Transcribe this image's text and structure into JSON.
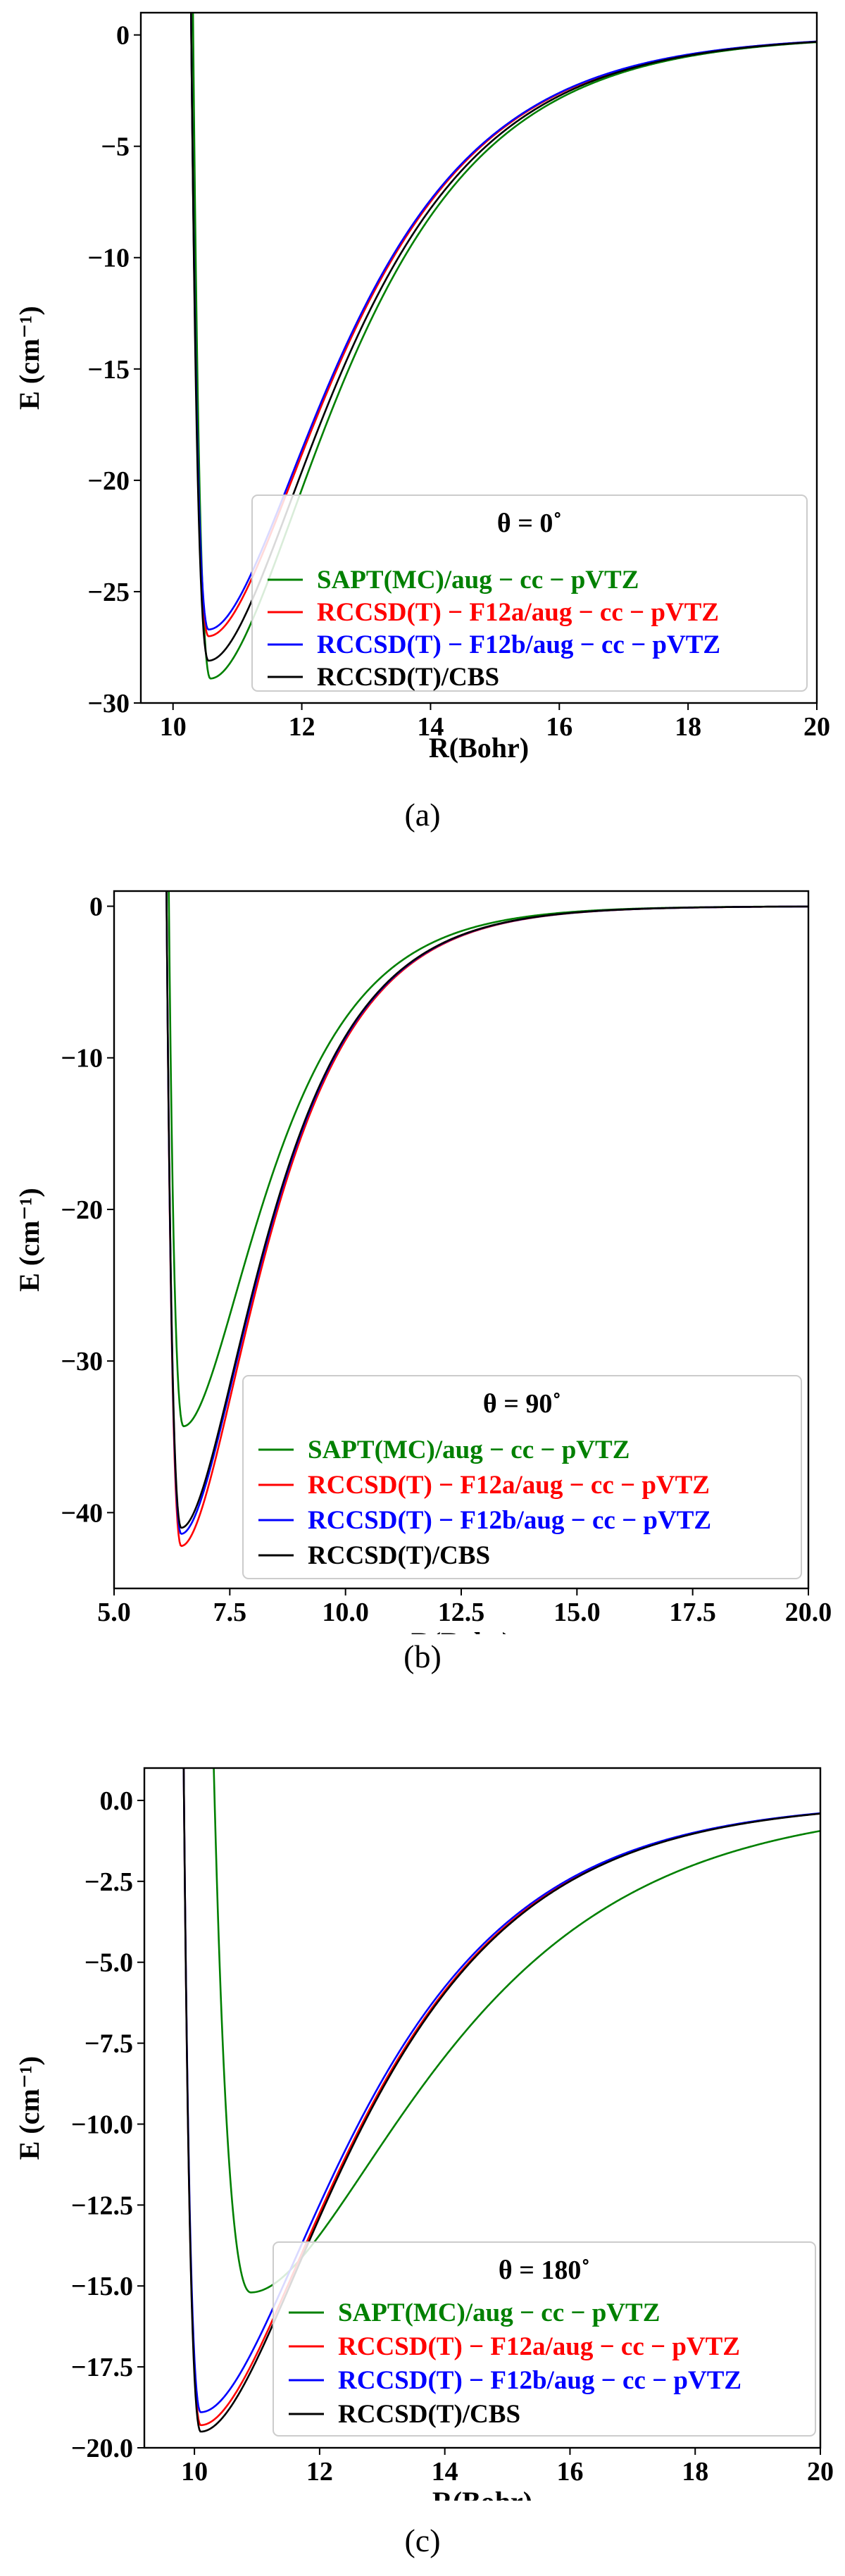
{
  "chart_data": [
    {
      "type": "line",
      "panel_label": "(a)",
      "title": "θ = 0˚",
      "xlabel": "R(Bohr)",
      "ylabel": "E (cm⁻¹)",
      "xlim": [
        9.5,
        20
      ],
      "ylim": [
        -30,
        1
      ],
      "xticks": [
        10,
        12,
        14,
        16,
        18,
        20
      ],
      "xtick_labels": [
        "10",
        "12",
        "14",
        "16",
        "18",
        "20"
      ],
      "yticks": [
        0,
        -5,
        -10,
        -15,
        -20,
        -25,
        -30
      ],
      "ytick_labels": [
        "0",
        "−5",
        "−10",
        "−15",
        "−20",
        "−25",
        "−30"
      ],
      "legend_position": "center-right",
      "series": [
        {
          "name": "SAPT(MC)/aug − cc − pVTZ",
          "color": "#008000",
          "r_min": 10.58,
          "well_depth": -28.9
        },
        {
          "name": "RCCSD(T) − F12a/aug − cc − pVTZ",
          "color": "#ff0000",
          "r_min": 10.55,
          "well_depth": -27.0
        },
        {
          "name": "RCCSD(T) − F12b/aug − cc − pVTZ",
          "color": "#0000ff",
          "r_min": 10.55,
          "well_depth": -26.7
        },
        {
          "name": "RCCSD(T)/CBS",
          "color": "#000000",
          "r_min": 10.55,
          "well_depth": -28.1
        }
      ]
    },
    {
      "type": "line",
      "panel_label": "(b)",
      "title": "θ = 90˚",
      "xlabel": "R(Bohr)",
      "ylabel": "E (cm⁻¹)",
      "xlim": [
        5.0,
        20.0
      ],
      "ylim": [
        -45,
        1
      ],
      "xticks": [
        5.0,
        7.5,
        10.0,
        12.5,
        15.0,
        17.5,
        20.0
      ],
      "xtick_labels": [
        "5.0",
        "7.5",
        "10.0",
        "12.5",
        "15.0",
        "17.5",
        "20.0"
      ],
      "yticks": [
        0,
        -10,
        -20,
        -30,
        -40
      ],
      "ytick_labels": [
        "0",
        "−10",
        "−20",
        "−30",
        "−40"
      ],
      "legend_position": "lower-right",
      "series": [
        {
          "name": "SAPT(MC)/aug − cc − pVTZ",
          "color": "#008000",
          "r_min": 6.5,
          "well_depth": -34.3
        },
        {
          "name": "RCCSD(T) − F12a/aug − cc − pVTZ",
          "color": "#ff0000",
          "r_min": 6.45,
          "well_depth": -42.2
        },
        {
          "name": "RCCSD(T) − F12b/aug − cc − pVTZ",
          "color": "#0000ff",
          "r_min": 6.45,
          "well_depth": -41.4
        },
        {
          "name": "RCCSD(T)/CBS",
          "color": "#000000",
          "r_min": 6.45,
          "well_depth": -41.0
        }
      ]
    },
    {
      "type": "line",
      "panel_label": "(c)",
      "title": "θ = 180˚",
      "xlabel": "R(Bohr)",
      "ylabel": "E (cm⁻¹)",
      "xlim": [
        9.2,
        20
      ],
      "ylim": [
        -20,
        1
      ],
      "xticks": [
        10,
        12,
        14,
        16,
        18,
        20
      ],
      "xtick_labels": [
        "10",
        "12",
        "14",
        "16",
        "18",
        "20"
      ],
      "yticks": [
        0,
        -2.5,
        -5,
        -7.5,
        -10,
        -12.5,
        -15,
        -17.5,
        -20
      ],
      "ytick_labels": [
        "0.0",
        "−2.5",
        "−5.0",
        "−7.5",
        "−10.0",
        "−12.5",
        "−15.0",
        "−17.5",
        "−20.0"
      ],
      "legend_position": "lower-right",
      "series": [
        {
          "name": "SAPT(MC)/aug − cc − pVTZ",
          "color": "#008000",
          "r_min": 10.9,
          "well_depth": -15.2
        },
        {
          "name": "RCCSD(T) − F12a/aug − cc − pVTZ",
          "color": "#ff0000",
          "r_min": 10.1,
          "well_depth": -19.3
        },
        {
          "name": "RCCSD(T) − F12b/aug − cc − pVTZ",
          "color": "#0000ff",
          "r_min": 10.1,
          "well_depth": -18.9
        },
        {
          "name": "RCCSD(T)/CBS",
          "color": "#000000",
          "r_min": 10.1,
          "well_depth": -19.5
        }
      ]
    }
  ]
}
